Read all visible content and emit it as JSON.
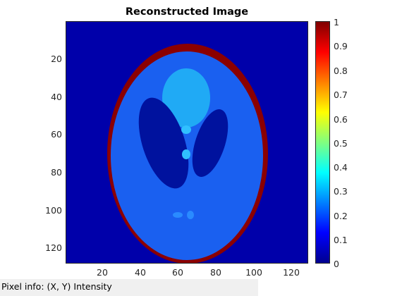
{
  "figure": {
    "title": "Reconstructed Image"
  },
  "y_ticks": [
    "20",
    "40",
    "60",
    "80",
    "100",
    "120"
  ],
  "x_ticks": [
    "20",
    "40",
    "60",
    "80",
    "100",
    "120"
  ],
  "colorbar_ticks": [
    "1",
    "0.9",
    "0.8",
    "0.7",
    "0.6",
    "0.5",
    "0.4",
    "0.3",
    "0.2",
    "0.1",
    "0"
  ],
  "status_bar": {
    "label": "Pixel info:",
    "value": "(X, Y)  Intensity"
  },
  "colors": {
    "background_dark_blue": "#0000aa",
    "skull_red": "#8b0000",
    "brain_blue": "#1a60f0",
    "ventricle_dark": "#00129e",
    "top_spot_cyan": "#20aaf5"
  },
  "chart_data": {
    "type": "heatmap",
    "title": "Reconstructed Image",
    "xlim": [
      1,
      128
    ],
    "ylim": [
      1,
      128
    ],
    "colormap": "jet",
    "clim": [
      0,
      1
    ]
  }
}
